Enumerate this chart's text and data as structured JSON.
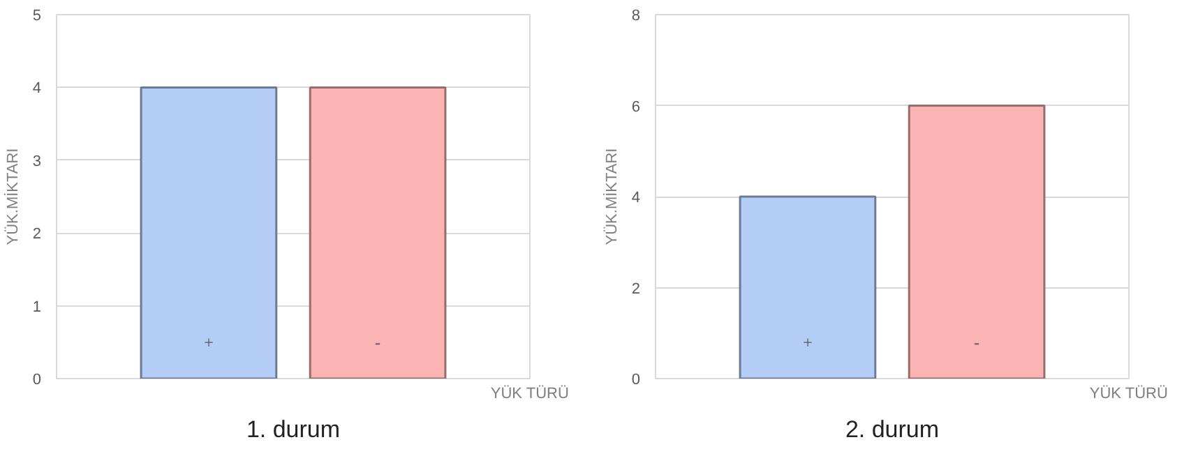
{
  "chart_data": [
    {
      "type": "bar",
      "title": "1. durum",
      "xlabel": "YÜK TÜRÜ",
      "ylabel": "YÜK.MİKTARI",
      "categories": [
        "+",
        "-"
      ],
      "values": [
        4,
        4
      ],
      "colors": [
        "#b3cdf7",
        "#fbb4b4"
      ],
      "ylim": [
        0,
        5
      ],
      "yticks": [
        0,
        1,
        2,
        3,
        4,
        5
      ],
      "grid": "y"
    },
    {
      "type": "bar",
      "title": "2. durum",
      "xlabel": "YÜK TÜRÜ",
      "ylabel": "YÜK.MİKTARI",
      "categories": [
        "+",
        "-"
      ],
      "values": [
        4,
        6
      ],
      "colors": [
        "#b3cdf7",
        "#fbb4b4"
      ],
      "ylim": [
        0,
        8
      ],
      "yticks": [
        0,
        2,
        4,
        6,
        8
      ],
      "grid": "y"
    }
  ]
}
